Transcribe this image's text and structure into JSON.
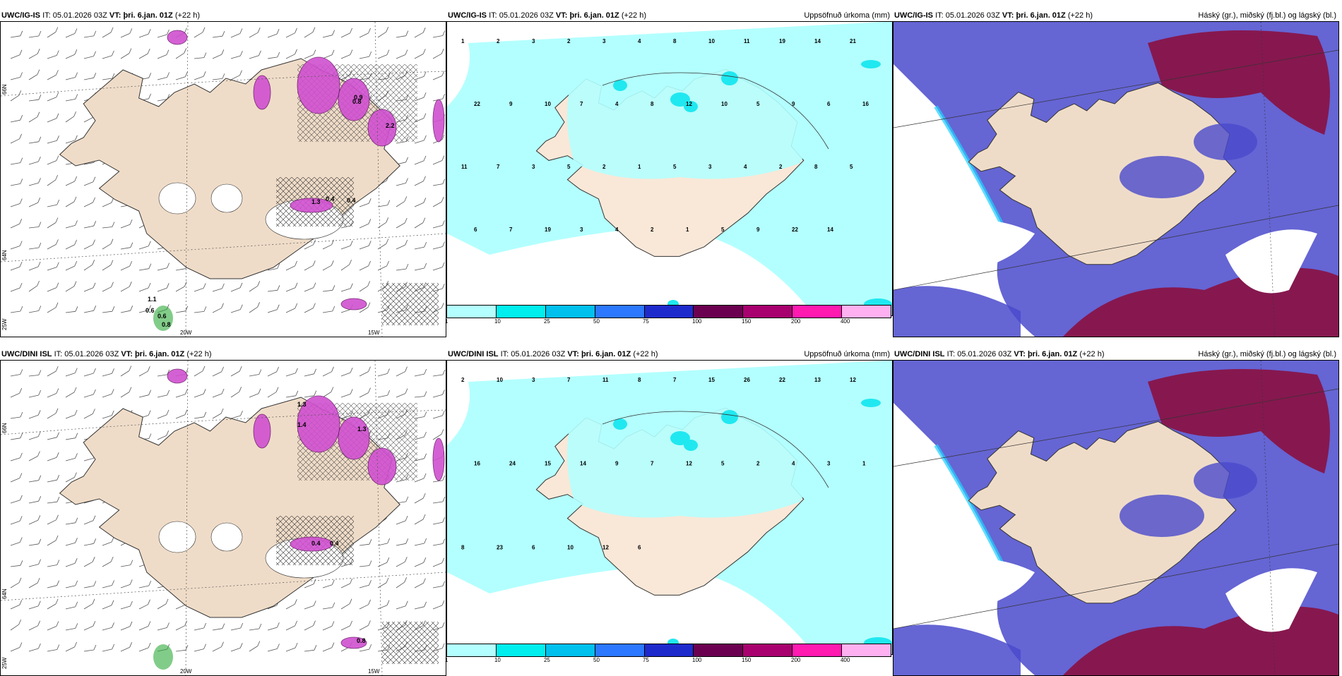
{
  "rows": [
    {
      "model": "UWC/IG-IS",
      "it_label": "IT:",
      "it_value": "05.01.2026 03Z",
      "vt_label": "VT:",
      "vt_value": "þri. 6.jan. 01Z",
      "lead": "(+22 h)"
    },
    {
      "model": "UWC/DINI ISL",
      "it_label": "IT:",
      "it_value": "05.01.2026 03Z",
      "vt_label": "VT:",
      "vt_value": "þri. 6.jan. 01Z",
      "lead": "(+22 h)"
    }
  ],
  "panel_titles": {
    "precip": "Uppsöfnuð úrkoma (mm)",
    "clouds": "Háský (gr.), miðský (fj.bl.) og lágský (bl.)"
  },
  "axis_labels": {
    "lat66": "66N",
    "lat64": "64N",
    "lon25": "25W",
    "lon20": "20W",
    "lon15": "15W"
  },
  "colorbar": {
    "ticks": [
      "1",
      "10",
      "25",
      "50",
      "75",
      "100",
      "150",
      "200",
      "400"
    ],
    "colors": [
      "#b3ffff",
      "#00eeee",
      "#00c0ee",
      "#2c78ff",
      "#1e2bcc",
      "#6b0050",
      "#a8006e",
      "#ff1ab0",
      "#ffb0f0"
    ]
  },
  "colors": {
    "land": "#efdcc8",
    "precip_light": "#b3ffff",
    "precip_mid": "#20e8f0",
    "cloud_low": "#4a4acc",
    "cloud_high": "#8a1040",
    "wind_snow": "#d050d0"
  },
  "precip_labels_top": [
    "1",
    "2",
    "3",
    "2",
    "3",
    "4",
    "8",
    "10",
    "11",
    "19",
    "14",
    "21",
    "22",
    "9",
    "10",
    "7",
    "4",
    "8",
    "12",
    "10",
    "5",
    "9",
    "6",
    "16",
    "11",
    "7",
    "3",
    "5",
    "2",
    "1",
    "5",
    "3",
    "4",
    "2",
    "8",
    "5",
    "6",
    "7",
    "19",
    "3",
    "4",
    "2",
    "1",
    "5",
    "9",
    "22",
    "14"
  ],
  "precip_labels_bottom": [
    "2",
    "10",
    "3",
    "7",
    "11",
    "8",
    "7",
    "15",
    "26",
    "22",
    "13",
    "12",
    "16",
    "24",
    "15",
    "14",
    "9",
    "7",
    "12",
    "5",
    "2",
    "4",
    "3",
    "1",
    "8",
    "23",
    "6",
    "10",
    "12",
    "6"
  ],
  "wind_labels_top": [
    "1.1",
    "0.6",
    "0.6",
    "0.8",
    "1.3",
    "0.4",
    "0.9",
    "0.4",
    "2.2",
    "0.8"
  ],
  "wind_labels_bottom": [
    "1.3",
    "1.4",
    "1.3",
    "0.4",
    "0.4",
    "0.8"
  ]
}
